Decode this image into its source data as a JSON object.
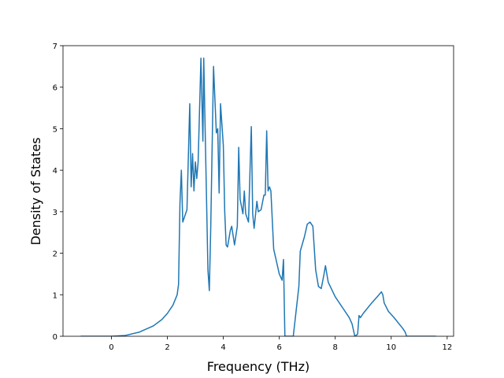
{
  "chart_data": {
    "type": "line",
    "xlabel": "Frequency (THz)",
    "ylabel": "Density of States",
    "xlim": [
      -1.73,
      12.23
    ],
    "ylim": [
      0,
      7
    ],
    "xticks": [
      0,
      2,
      4,
      6,
      8,
      10,
      12
    ],
    "yticks": [
      0,
      1,
      2,
      3,
      4,
      5,
      6,
      7
    ],
    "series": [
      {
        "color": "#1f77b4",
        "x": [
          -1.1,
          0,
          0.5,
          1.0,
          1.5,
          1.8,
          2.0,
          2.2,
          2.35,
          2.4,
          2.45,
          2.5,
          2.55,
          2.6,
          2.7,
          2.8,
          2.85,
          2.9,
          2.95,
          3.0,
          3.05,
          3.1,
          3.2,
          3.27,
          3.3,
          3.45,
          3.5,
          3.55,
          3.65,
          3.75,
          3.8,
          3.85,
          3.9,
          4.0,
          4.05,
          4.1,
          4.15,
          4.25,
          4.3,
          4.4,
          4.5,
          4.55,
          4.6,
          4.7,
          4.75,
          4.8,
          4.9,
          5.0,
          5.05,
          5.1,
          5.2,
          5.25,
          5.35,
          5.45,
          5.5,
          5.55,
          5.6,
          5.65,
          5.7,
          5.8,
          5.9,
          6.0,
          6.1,
          6.15,
          6.2,
          6.5,
          6.6,
          6.7,
          6.75,
          6.9,
          7.0,
          7.1,
          7.2,
          7.3,
          7.4,
          7.5,
          7.6,
          7.65,
          7.75,
          8.0,
          8.3,
          8.5,
          8.6,
          8.7,
          8.8,
          8.85,
          8.9,
          9.0,
          9.3,
          9.5,
          9.65,
          9.7,
          9.75,
          9.9,
          10.1,
          10.4,
          10.5,
          10.55,
          11.6
        ],
        "values": [
          0,
          0,
          0.02,
          0.1,
          0.25,
          0.4,
          0.55,
          0.75,
          1.0,
          1.25,
          3.2,
          4.0,
          2.75,
          2.85,
          3.05,
          5.6,
          3.6,
          4.4,
          3.5,
          4.2,
          3.8,
          4.2,
          6.7,
          4.7,
          6.7,
          1.6,
          1.1,
          2.6,
          6.5,
          4.9,
          5.0,
          3.45,
          5.6,
          4.6,
          3.0,
          2.2,
          2.15,
          2.55,
          2.65,
          2.2,
          2.65,
          4.55,
          3.3,
          2.95,
          3.5,
          2.95,
          2.75,
          5.05,
          2.95,
          2.6,
          3.25,
          3.0,
          3.05,
          3.4,
          3.4,
          4.95,
          3.5,
          3.6,
          3.5,
          2.1,
          1.8,
          1.5,
          1.35,
          1.85,
          0,
          0,
          0.6,
          1.2,
          2.05,
          2.4,
          2.7,
          2.75,
          2.65,
          1.6,
          1.2,
          1.15,
          1.5,
          1.7,
          1.3,
          0.95,
          0.65,
          0.45,
          0.3,
          0.0,
          0.05,
          0.5,
          0.45,
          0.55,
          0.8,
          0.95,
          1.07,
          1.0,
          0.8,
          0.6,
          0.45,
          0.2,
          0.1,
          0,
          0
        ]
      }
    ]
  }
}
